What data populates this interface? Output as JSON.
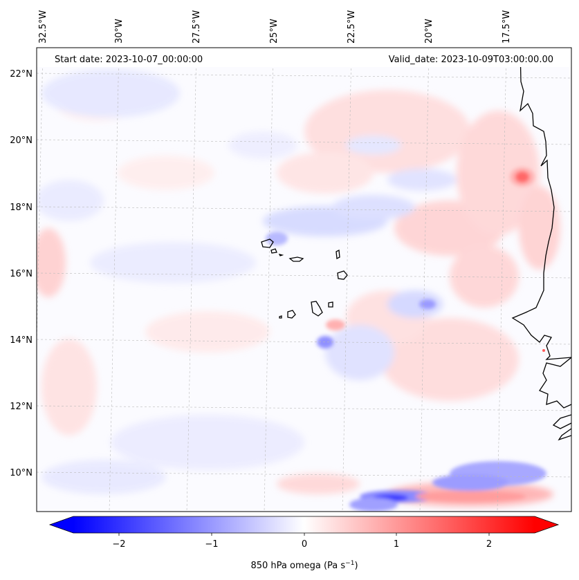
{
  "map": {
    "header": {
      "start": "Start date: 2023-10-07_00:00:00",
      "valid": "Valid_date: 2023-10-09T03:00:00.00"
    },
    "lon_labels": [
      "32.5°W",
      "30°W",
      "27.5°W",
      "25°W",
      "22.5°W",
      "20°W",
      "17.5°W"
    ],
    "lat_labels": [
      "22°N",
      "20°N",
      "18°N",
      "16°N",
      "14°N",
      "12°N",
      "10°N"
    ],
    "extent": {
      "lon_min": -33.0,
      "lon_max": -15.6,
      "lat_min": 8.9,
      "lat_max": 22.8
    }
  },
  "colorbar": {
    "label_main": "850 hPa omega (Pa s",
    "label_exp": "−1",
    "label_close": ")",
    "ticks": [
      "−2",
      "−1",
      "0",
      "1",
      "2"
    ],
    "range": [
      -2.6,
      2.6
    ],
    "colors": {
      "neg": "#0000ff",
      "mid": "#ffffff",
      "pos": "#ff0000"
    }
  }
}
